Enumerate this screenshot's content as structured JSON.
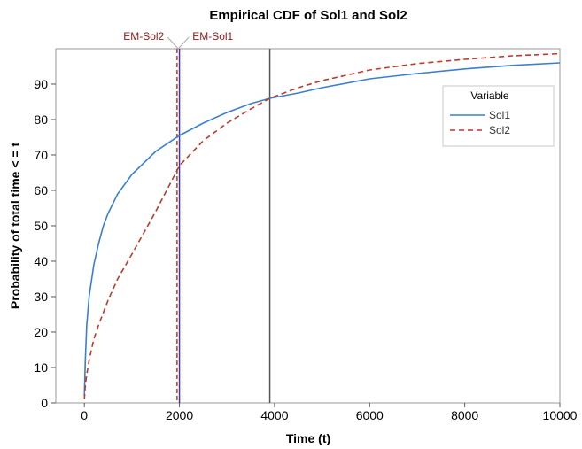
{
  "chart_data": {
    "type": "line",
    "title": "Empirical CDF of Sol1 and Sol2",
    "xlabel": "Time (t)",
    "ylabel": "Probability of total time < = t",
    "xlim": [
      -600,
      10000
    ],
    "ylim": [
      0,
      100
    ],
    "xticks": [
      0,
      2000,
      4000,
      6000,
      8000,
      10000
    ],
    "yticks": [
      0,
      10,
      20,
      30,
      40,
      50,
      60,
      70,
      80,
      90
    ],
    "grid": false,
    "legend": {
      "title": "Variable",
      "placement": "right"
    },
    "series": [
      {
        "name": "Sol1",
        "color": "#3a7fd0",
        "style": "solid",
        "x": [
          0,
          20,
          50,
          100,
          200,
          300,
          400,
          500,
          700,
          1000,
          1500,
          2000,
          2500,
          3000,
          3500,
          3900,
          4500,
          5000,
          6000,
          7000,
          8000,
          9000,
          10000
        ],
        "y": [
          2,
          12,
          22,
          30,
          39,
          45,
          50,
          53.5,
          59,
          64.5,
          71,
          75.5,
          79,
          82,
          84.5,
          86,
          87.5,
          89,
          91.5,
          93,
          94.3,
          95.3,
          96
        ]
      },
      {
        "name": "Sol2",
        "color": "#c0392b",
        "style": "dashed",
        "x": [
          0,
          20,
          50,
          100,
          200,
          300,
          500,
          700,
          1000,
          1500,
          2000,
          2500,
          3000,
          3500,
          3900,
          4500,
          5000,
          6000,
          7000,
          8000,
          9000,
          10000
        ],
        "y": [
          1,
          5,
          8,
          12,
          18,
          22,
          29,
          35,
          42,
          54,
          67,
          74,
          79,
          83,
          86,
          89,
          91,
          94,
          95.8,
          97,
          98,
          98.6
        ]
      }
    ],
    "reference_lines": [
      {
        "label": "EM-Sol2",
        "x": 1950,
        "color": "#c0392b",
        "style": "dashed"
      },
      {
        "label": "EM-Sol1",
        "x": 2000,
        "color": "#3a3aa8",
        "style": "solid"
      },
      {
        "label": "",
        "x": 3900,
        "color": "#555555",
        "style": "solid"
      }
    ]
  }
}
